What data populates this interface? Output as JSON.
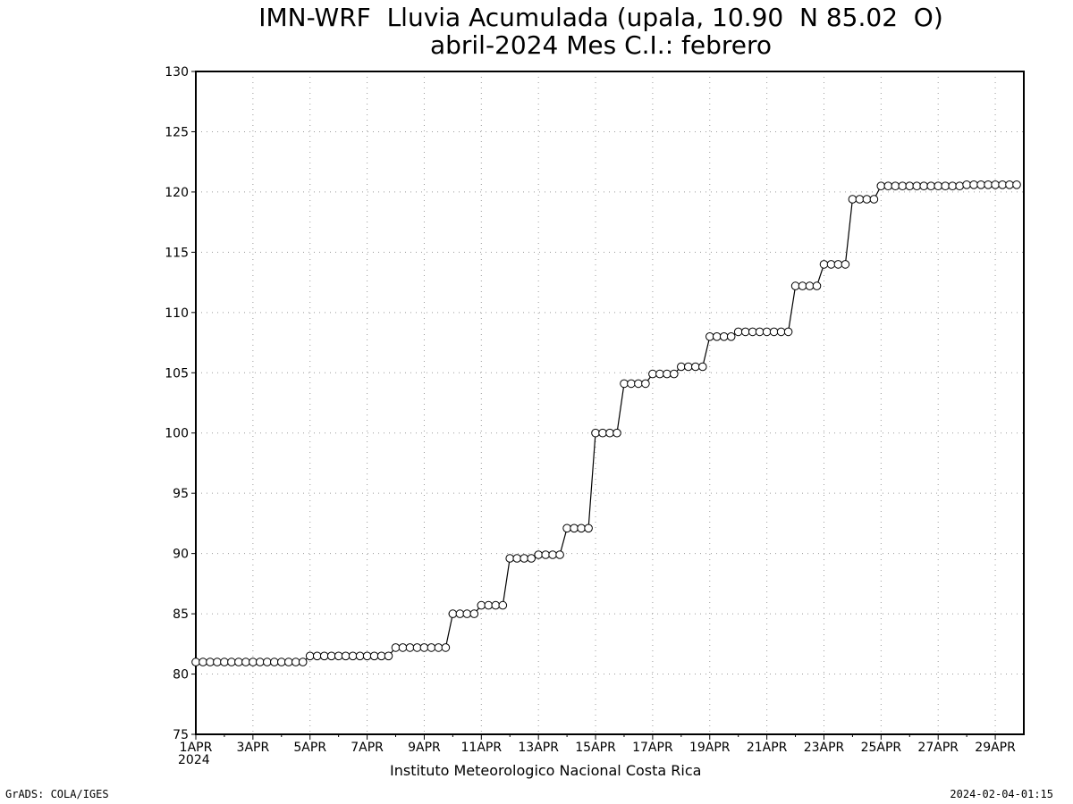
{
  "header": {
    "title_line1": "IMN-WRF  Lluvia Acumulada (upala, 10.90  N 85.02  O)",
    "title_line2": "abril-2024 Mes C.I.: febrero"
  },
  "footer": {
    "institution": "Instituto Meteorologico Nacional Costa Rica",
    "credit_left": "GrADS: COLA/IGES",
    "credit_right": "2024-02-04-01:15",
    "year": "2024"
  },
  "chart_data": {
    "type": "line",
    "title": "IMN-WRF  Lluvia Acumulada (upala, 10.90  N 85.02  O)",
    "subtitle": "abril-2024 Mes C.I.: febrero",
    "xlabel": "",
    "ylabel": "",
    "ylim": [
      75,
      130
    ],
    "y_ticks": [
      75,
      80,
      85,
      90,
      95,
      100,
      105,
      110,
      115,
      120,
      125,
      130
    ],
    "x_tick_labels": [
      "1APR",
      "3APR",
      "5APR",
      "7APR",
      "9APR",
      "11APR",
      "13APR",
      "15APR",
      "17APR",
      "19APR",
      "21APR",
      "23APR",
      "25APR",
      "27APR",
      "29APR"
    ],
    "x_range_days": [
      1,
      30
    ],
    "grid": true,
    "marker": "open-circle",
    "steps_per_day": 4,
    "series": [
      {
        "values": [
          81.0,
          81.0,
          81.0,
          81.0,
          81.0,
          81.0,
          81.0,
          81.0,
          81.0,
          81.0,
          81.0,
          81.0,
          81.0,
          81.0,
          81.0,
          81.0,
          81.5,
          81.5,
          81.5,
          81.5,
          81.5,
          81.5,
          81.5,
          81.5,
          81.5,
          81.5,
          81.5,
          81.5,
          82.2,
          82.2,
          82.2,
          82.2,
          82.2,
          82.2,
          82.2,
          82.2,
          85.0,
          85.0,
          85.0,
          85.0,
          85.7,
          85.7,
          85.7,
          85.7,
          89.6,
          89.6,
          89.6,
          89.6,
          89.9,
          89.9,
          89.9,
          89.9,
          92.1,
          92.1,
          92.1,
          92.1,
          100.0,
          100.0,
          100.0,
          100.0,
          104.1,
          104.1,
          104.1,
          104.1,
          104.9,
          104.9,
          104.9,
          104.9,
          105.5,
          105.5,
          105.5,
          105.5,
          108.0,
          108.0,
          108.0,
          108.0,
          108.4,
          108.4,
          108.4,
          108.4,
          108.4,
          108.4,
          108.4,
          108.4,
          112.2,
          112.2,
          112.2,
          112.2,
          114.0,
          114.0,
          114.0,
          114.0,
          119.4,
          119.4,
          119.4,
          119.4,
          120.5,
          120.5,
          120.5,
          120.5,
          120.5,
          120.5,
          120.5,
          120.5,
          120.5,
          120.5,
          120.5,
          120.5,
          120.6,
          120.6,
          120.6,
          120.6,
          120.6,
          120.6,
          120.6,
          120.6
        ]
      }
    ]
  }
}
